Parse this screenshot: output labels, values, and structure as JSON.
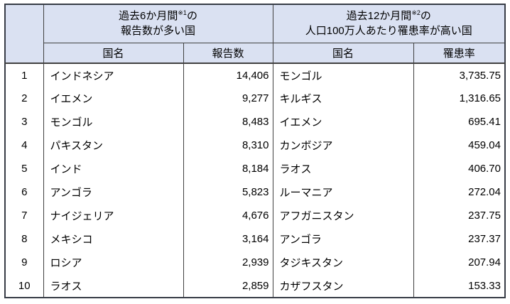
{
  "colors": {
    "header_fill": "#dae1f2",
    "outer_border": "#373c46",
    "inner_border": "#404040",
    "text": "#000000",
    "background": "#ffffff"
  },
  "table": {
    "header": {
      "rank_label": "",
      "left_group": {
        "line1_prefix": "過去6か月間",
        "line1_sup": "※1",
        "line1_suffix": "の",
        "line2": "報告数が多い国"
      },
      "right_group": {
        "line1_prefix": "過去12か月間",
        "line1_sup": "※2",
        "line1_suffix": "の",
        "line2": "人口100万人あたり罹患率が高い国"
      },
      "country_label_left": "国名",
      "reports_label": "報告数",
      "country_label_right": "国名",
      "rate_label": "罹患率"
    },
    "rows": [
      {
        "rank": "1",
        "country_reports": "インドネシア",
        "reports": "14,406",
        "country_rate": "モンゴル",
        "rate": "3,735.75"
      },
      {
        "rank": "2",
        "country_reports": "イエメン",
        "reports": "9,277",
        "country_rate": "キルギス",
        "rate": "1,316.65"
      },
      {
        "rank": "3",
        "country_reports": "モンゴル",
        "reports": "8,483",
        "country_rate": "イエメン",
        "rate": "695.41"
      },
      {
        "rank": "4",
        "country_reports": "パキスタン",
        "reports": "8,310",
        "country_rate": "カンボジア",
        "rate": "459.04"
      },
      {
        "rank": "5",
        "country_reports": "インド",
        "reports": "8,184",
        "country_rate": "ラオス",
        "rate": "406.70"
      },
      {
        "rank": "6",
        "country_reports": "アンゴラ",
        "reports": "5,823",
        "country_rate": "ルーマニア",
        "rate": "272.04"
      },
      {
        "rank": "7",
        "country_reports": "ナイジェリア",
        "reports": "4,676",
        "country_rate": "アフガニスタン",
        "rate": "237.75"
      },
      {
        "rank": "8",
        "country_reports": "メキシコ",
        "reports": "3,164",
        "country_rate": "アンゴラ",
        "rate": "237.37"
      },
      {
        "rank": "9",
        "country_reports": "ロシア",
        "reports": "2,939",
        "country_rate": "タジキスタン",
        "rate": "207.94"
      },
      {
        "rank": "10",
        "country_reports": "ラオス",
        "reports": "2,859",
        "country_rate": "カザフスタン",
        "rate": "153.33"
      }
    ]
  }
}
